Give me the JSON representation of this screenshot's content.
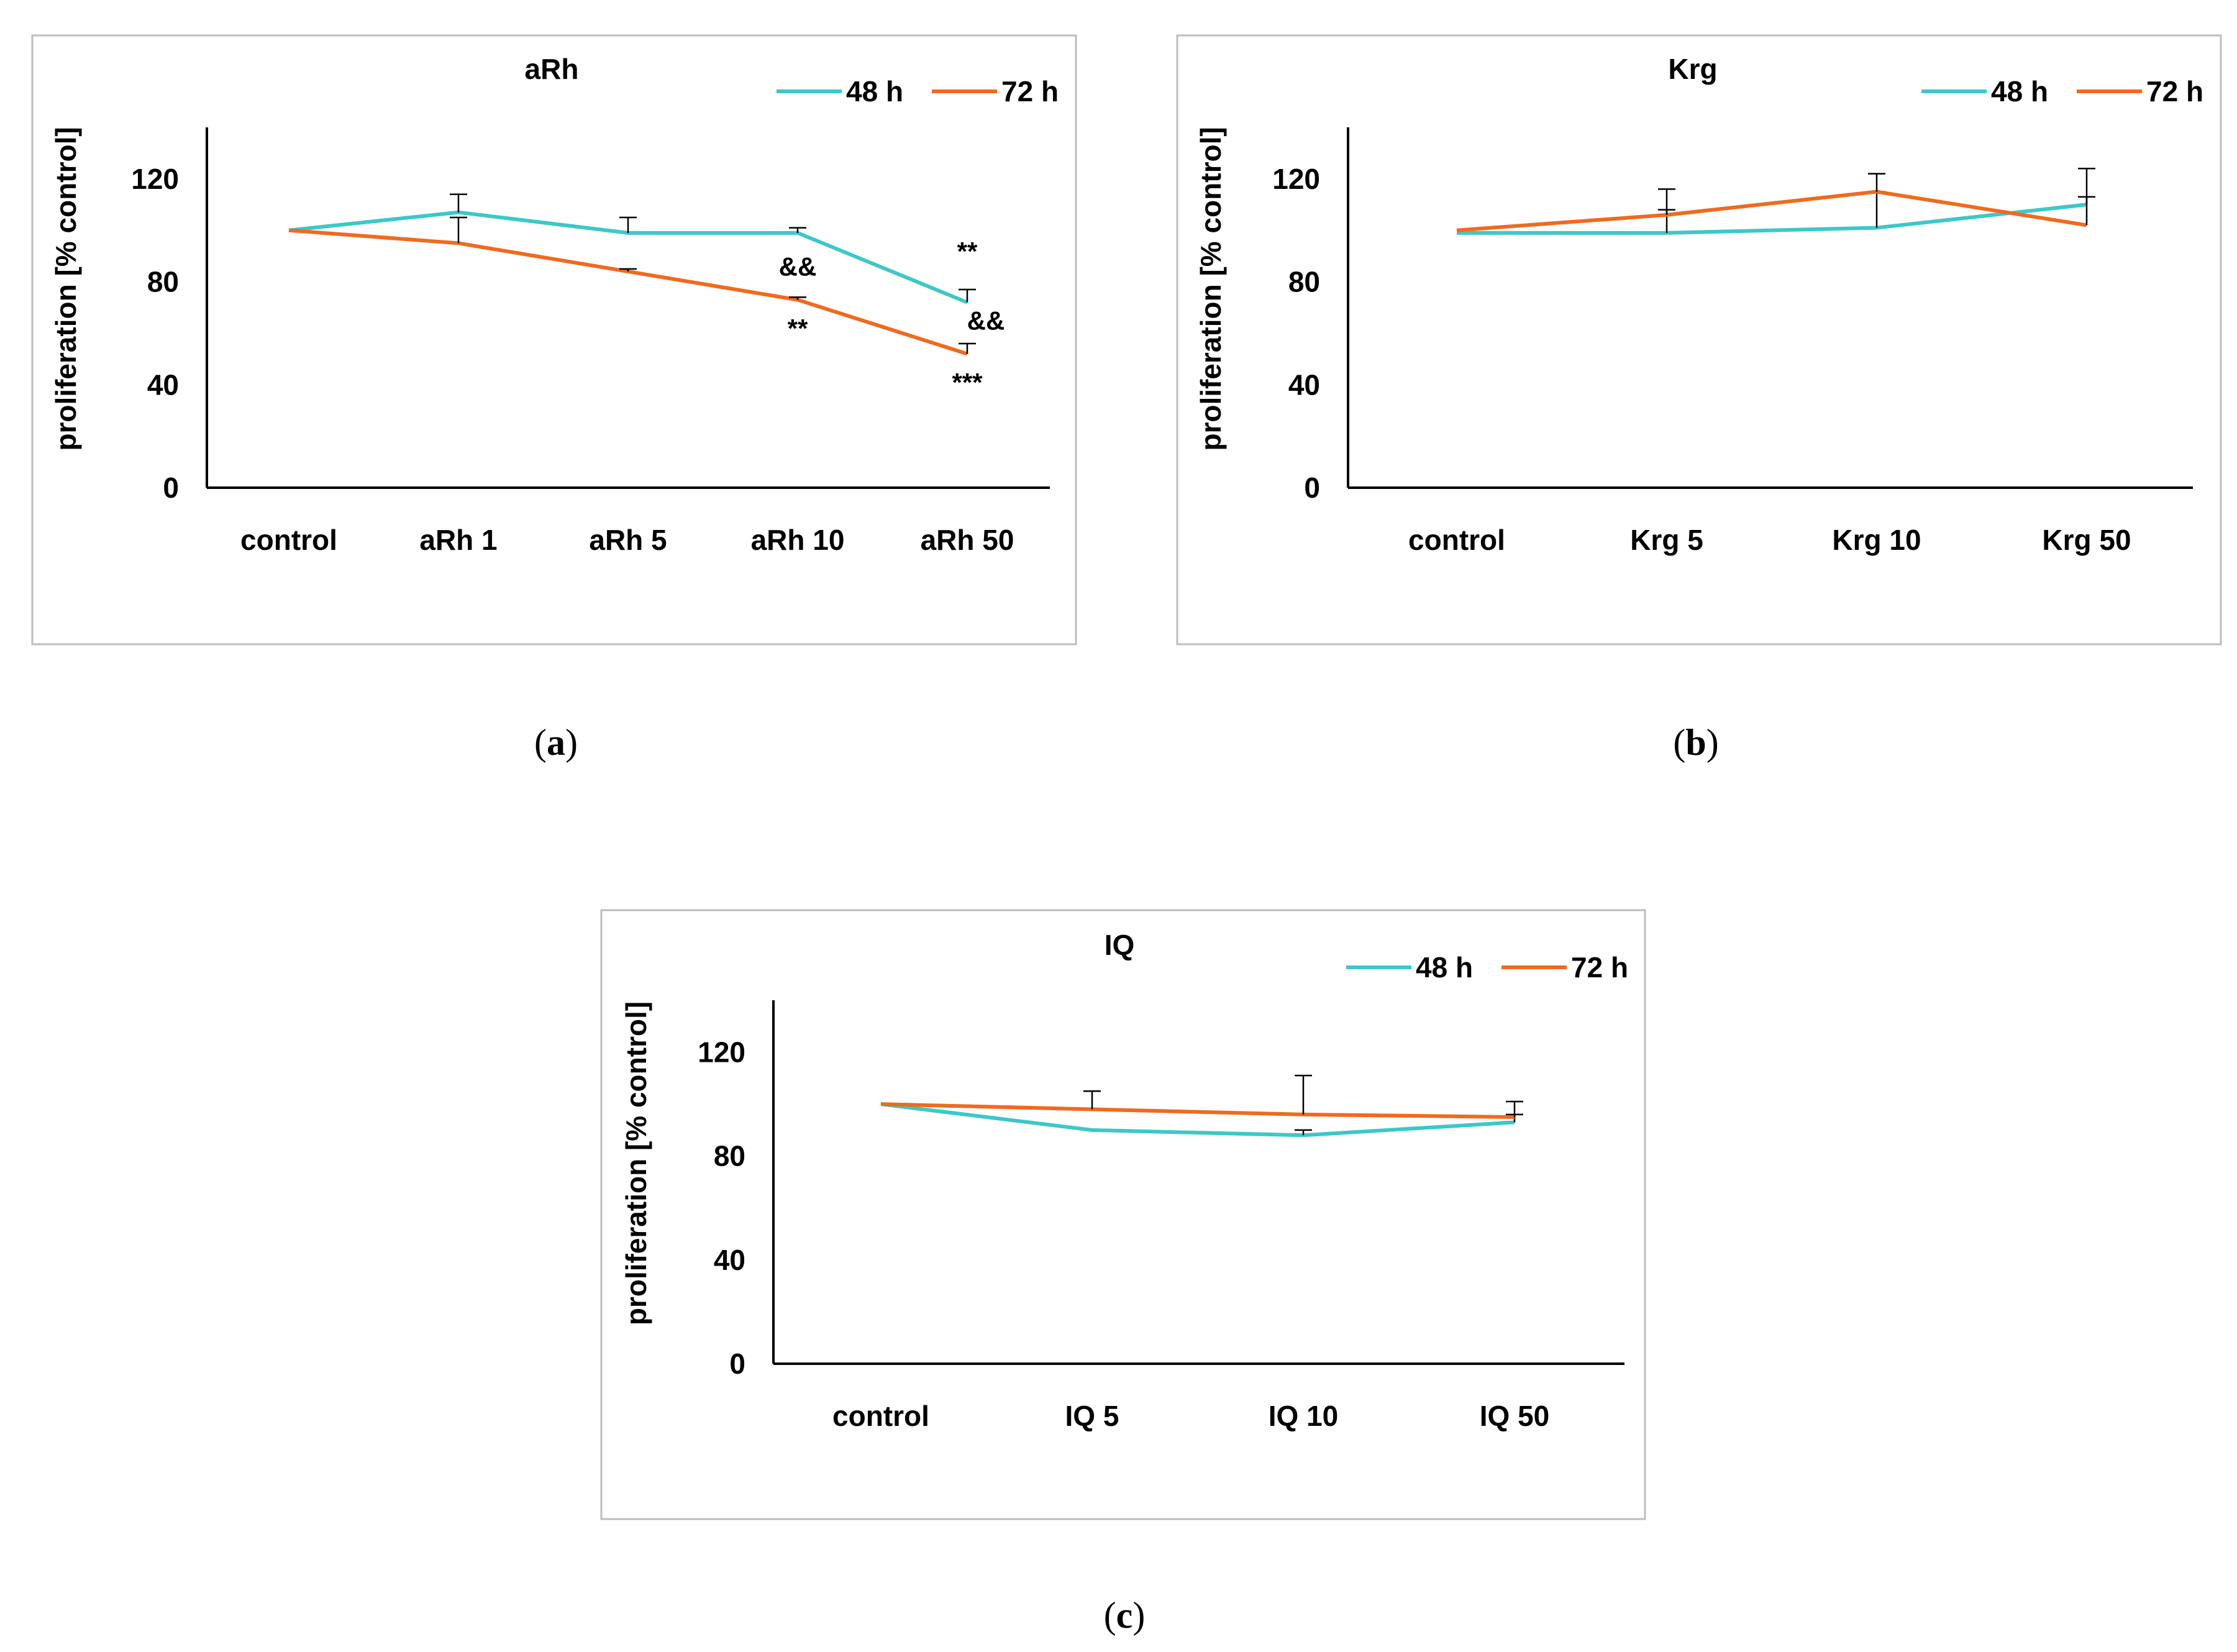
{
  "colors": {
    "series_48h": "#3cc8c8",
    "series_72h": "#f06a1e",
    "frame": "#bdbdbd",
    "axis": "#000000",
    "errorbar": "#000000"
  },
  "chart_data": [
    {
      "type": "line",
      "title": "aRh",
      "caption": "a",
      "categories": [
        "control",
        "aRh 1",
        "aRh 5",
        "aRh 10",
        "aRh 50"
      ],
      "ylabel": "proliferation [% control]",
      "ylim": [
        0,
        140
      ],
      "yticks": [
        0,
        40,
        80,
        120
      ],
      "legend_position": "top-right",
      "series": [
        {
          "name": "48 h",
          "values": [
            100,
            107,
            99,
            99,
            72
          ],
          "err": [
            0,
            7,
            6,
            2,
            5
          ]
        },
        {
          "name": "72 h",
          "values": [
            100,
            95,
            84,
            73,
            52
          ],
          "err": [
            0,
            10,
            1,
            1,
            4
          ]
        }
      ],
      "annotations": [
        {
          "text": "&&",
          "category": 3,
          "y": 86
        },
        {
          "text": "**",
          "category": 3,
          "y": 62
        },
        {
          "text": "**",
          "category": 4,
          "y": 92
        },
        {
          "text": "&&",
          "category": 4,
          "y": 65
        },
        {
          "text": "***",
          "category": 4,
          "y": 41
        }
      ]
    },
    {
      "type": "line",
      "title": "Krg",
      "caption": "b",
      "categories": [
        "control",
        "Krg 5",
        "Krg 10",
        "Krg 50"
      ],
      "ylabel": "proliferation [% control]",
      "ylim": [
        0,
        140
      ],
      "yticks": [
        0,
        40,
        80,
        120
      ],
      "legend_position": "top-right",
      "series": [
        {
          "name": "48 h",
          "values": [
            99,
            99,
            101,
            110
          ],
          "err": [
            0,
            9,
            14,
            3
          ]
        },
        {
          "name": "72 h",
          "values": [
            100,
            106,
            115,
            102
          ],
          "err": [
            0,
            10,
            7,
            22
          ]
        }
      ],
      "annotations": []
    },
    {
      "type": "line",
      "title": "IQ",
      "caption": "c",
      "categories": [
        "control",
        "IQ 5",
        "IQ 10",
        "IQ 50"
      ],
      "ylabel": "proliferation [% control]",
      "ylim": [
        0,
        140
      ],
      "yticks": [
        0,
        40,
        80,
        120
      ],
      "legend_position": "top-right",
      "series": [
        {
          "name": "48 h",
          "values": [
            100,
            90,
            88,
            93
          ],
          "err": [
            0,
            0,
            2,
            3
          ]
        },
        {
          "name": "72 h",
          "values": [
            100,
            98,
            96,
            95
          ],
          "err": [
            0,
            7,
            15,
            6
          ]
        }
      ],
      "annotations": []
    }
  ]
}
